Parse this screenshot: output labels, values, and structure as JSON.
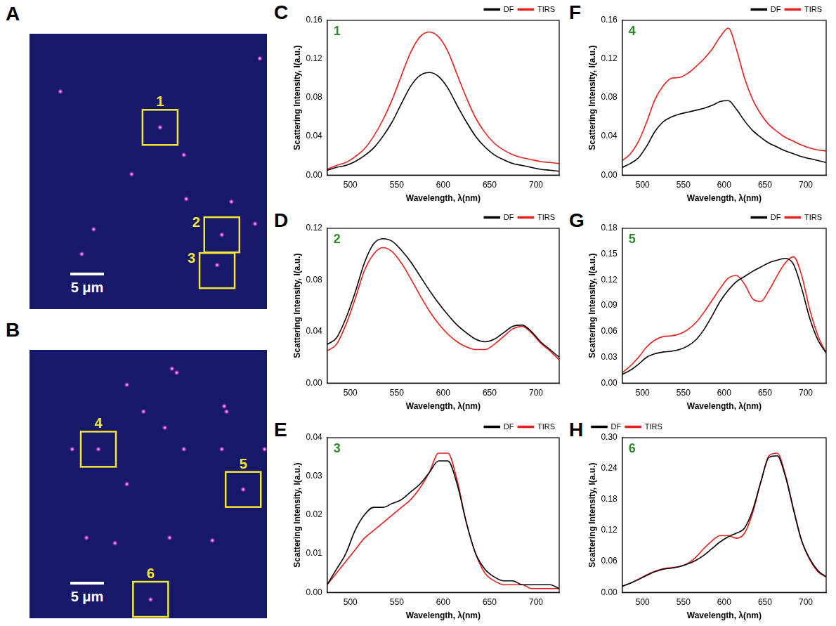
{
  "images": [
    {
      "panel": "A",
      "scale_bar": "5 μm",
      "spots": [
        {
          "x": 0.97,
          "y": 0.09
        },
        {
          "x": 0.13,
          "y": 0.21
        },
        {
          "x": 0.55,
          "y": 0.34
        },
        {
          "x": 0.65,
          "y": 0.44
        },
        {
          "x": 0.43,
          "y": 0.51
        },
        {
          "x": 0.66,
          "y": 0.6
        },
        {
          "x": 0.85,
          "y": 0.61
        },
        {
          "x": 0.81,
          "y": 0.73
        },
        {
          "x": 0.95,
          "y": 0.69
        },
        {
          "x": 0.27,
          "y": 0.71
        },
        {
          "x": 0.79,
          "y": 0.84
        },
        {
          "x": 0.22,
          "y": 0.8
        }
      ],
      "boxes": [
        {
          "label": "1",
          "x": 0.55,
          "y": 0.34,
          "label_side": "top"
        },
        {
          "label": "2",
          "x": 0.81,
          "y": 0.73,
          "label_side": "left"
        },
        {
          "label": "3",
          "x": 0.79,
          "y": 0.86,
          "label_side": "left"
        }
      ]
    },
    {
      "panel": "B",
      "scale_bar": "5 μm",
      "spots": [
        {
          "x": 0.29,
          "y": 0.37
        },
        {
          "x": 0.9,
          "y": 0.52
        },
        {
          "x": 0.51,
          "y": 0.93
        },
        {
          "x": 0.6,
          "y": 0.07
        },
        {
          "x": 0.62,
          "y": 0.085
        },
        {
          "x": 0.41,
          "y": 0.13
        },
        {
          "x": 0.82,
          "y": 0.21
        },
        {
          "x": 0.83,
          "y": 0.23
        },
        {
          "x": 0.48,
          "y": 0.23
        },
        {
          "x": 0.18,
          "y": 0.37
        },
        {
          "x": 0.41,
          "y": 0.5
        },
        {
          "x": 0.65,
          "y": 0.37
        },
        {
          "x": 0.81,
          "y": 0.37
        },
        {
          "x": 0.99,
          "y": 0.37
        },
        {
          "x": 0.24,
          "y": 0.7
        },
        {
          "x": 0.36,
          "y": 0.72
        },
        {
          "x": 0.59,
          "y": 0.7
        },
        {
          "x": 0.77,
          "y": 0.71
        },
        {
          "x": 0.57,
          "y": 0.29
        }
      ],
      "boxes": [
        {
          "label": "4",
          "x": 0.29,
          "y": 0.37,
          "label_side": "top"
        },
        {
          "label": "5",
          "x": 0.9,
          "y": 0.52,
          "label_side": "top"
        },
        {
          "label": "6",
          "x": 0.51,
          "y": 0.93,
          "label_side": "top"
        }
      ]
    }
  ],
  "chart_data": [
    {
      "panel": "C",
      "type": "line",
      "annotation": "1",
      "x_label": "Wavelength, λ(nm)",
      "y_label": "Scattering Intensity, I(a.u.)",
      "x": [
        475,
        485,
        495,
        505,
        515,
        525,
        535,
        545,
        555,
        565,
        575,
        585,
        595,
        605,
        615,
        625,
        635,
        645,
        655,
        665,
        675,
        685,
        695,
        705,
        715,
        725
      ],
      "series": [
        {
          "name": "DF",
          "color": "#000000",
          "values": [
            0.005,
            0.008,
            0.01,
            0.014,
            0.02,
            0.028,
            0.04,
            0.055,
            0.074,
            0.092,
            0.103,
            0.106,
            0.102,
            0.09,
            0.072,
            0.055,
            0.04,
            0.029,
            0.021,
            0.016,
            0.012,
            0.01,
            0.008,
            0.006,
            0.005,
            0.004
          ]
        },
        {
          "name": "TIRS",
          "color": "#e8201c",
          "values": [
            0.006,
            0.01,
            0.013,
            0.019,
            0.027,
            0.04,
            0.057,
            0.078,
            0.103,
            0.127,
            0.143,
            0.148,
            0.143,
            0.128,
            0.104,
            0.08,
            0.059,
            0.044,
            0.033,
            0.026,
            0.021,
            0.018,
            0.016,
            0.014,
            0.013,
            0.012
          ]
        }
      ],
      "xlim": [
        475,
        725
      ],
      "xticks": [
        500,
        550,
        600,
        650,
        700
      ],
      "ylim": [
        0,
        0.16
      ],
      "yticks": [
        {
          "value": 0,
          "label": "0.00"
        },
        {
          "value": 0.04,
          "label": "0.04"
        },
        {
          "value": 0.08,
          "label": "0.08"
        },
        {
          "value": 0.12,
          "label": "0.12"
        },
        {
          "value": 0.16,
          "label": "0.16"
        }
      ],
      "grid": false,
      "legend": "top-right"
    },
    {
      "panel": "D",
      "type": "line",
      "annotation": "2",
      "x_label": "Wavelength, λ(nm)",
      "y_label": "Scattering Intensity, I(a.u.)",
      "x": [
        475,
        485,
        495,
        505,
        515,
        525,
        535,
        545,
        555,
        565,
        575,
        585,
        595,
        605,
        615,
        625,
        635,
        645,
        655,
        665,
        675,
        685,
        695,
        705,
        715,
        725
      ],
      "series": [
        {
          "name": "DF",
          "color": "#000000",
          "values": [
            0.03,
            0.035,
            0.05,
            0.07,
            0.093,
            0.108,
            0.112,
            0.11,
            0.103,
            0.094,
            0.083,
            0.072,
            0.062,
            0.053,
            0.045,
            0.039,
            0.034,
            0.032,
            0.034,
            0.039,
            0.044,
            0.045,
            0.04,
            0.032,
            0.026,
            0.02
          ]
        },
        {
          "name": "TIRS",
          "color": "#e8201c",
          "values": [
            0.025,
            0.03,
            0.045,
            0.065,
            0.087,
            0.1,
            0.105,
            0.102,
            0.093,
            0.081,
            0.068,
            0.056,
            0.046,
            0.038,
            0.032,
            0.028,
            0.026,
            0.026,
            0.03,
            0.036,
            0.042,
            0.044,
            0.039,
            0.031,
            0.025,
            0.018
          ]
        }
      ],
      "xlim": [
        475,
        725
      ],
      "xticks": [
        500,
        550,
        600,
        650,
        700
      ],
      "ylim": [
        0,
        0.12
      ],
      "yticks": [
        {
          "value": 0,
          "label": "0.00"
        },
        {
          "value": 0.04,
          "label": "0.04"
        },
        {
          "value": 0.08,
          "label": "0.08"
        },
        {
          "value": 0.12,
          "label": "0.12"
        }
      ],
      "grid": false,
      "legend": "top-right"
    },
    {
      "panel": "E",
      "type": "line",
      "annotation": "3",
      "x_label": "Wavelength, λ(nm)",
      "y_label": "Scattering Intensity, I(a.u.)",
      "x": [
        475,
        485,
        495,
        505,
        515,
        525,
        535,
        545,
        555,
        565,
        575,
        585,
        595,
        605,
        615,
        625,
        635,
        645,
        655,
        665,
        675,
        685,
        695,
        705,
        715,
        725
      ],
      "series": [
        {
          "name": "DF",
          "color": "#000000",
          "values": [
            0.002,
            0.006,
            0.01,
            0.016,
            0.02,
            0.022,
            0.022,
            0.023,
            0.024,
            0.026,
            0.028,
            0.031,
            0.034,
            0.034,
            0.028,
            0.018,
            0.01,
            0.006,
            0.004,
            0.003,
            0.003,
            0.002,
            0.002,
            0.002,
            0.002,
            0.001
          ]
        },
        {
          "name": "TIRS",
          "color": "#e8201c",
          "values": [
            0.002,
            0.005,
            0.008,
            0.011,
            0.014,
            0.016,
            0.018,
            0.02,
            0.022,
            0.024,
            0.027,
            0.031,
            0.036,
            0.036,
            0.029,
            0.018,
            0.01,
            0.005,
            0.003,
            0.002,
            0.002,
            0.002,
            0.001,
            0.001,
            0.001,
            0.001
          ]
        }
      ],
      "xlim": [
        475,
        725
      ],
      "xticks": [
        500,
        550,
        600,
        650,
        700
      ],
      "ylim": [
        0,
        0.04
      ],
      "yticks": [
        {
          "value": 0,
          "label": "0.00"
        },
        {
          "value": 0.01,
          "label": "0.01"
        },
        {
          "value": 0.02,
          "label": "0.02"
        },
        {
          "value": 0.03,
          "label": "0.03"
        },
        {
          "value": 0.04,
          "label": "0.04"
        }
      ],
      "grid": false,
      "legend": "top-right"
    },
    {
      "panel": "F",
      "type": "line",
      "annotation": "4",
      "x_label": "Wavelength, λ(nm)",
      "y_label": "Scattering Intensity, I(a.u.)",
      "x": [
        475,
        485,
        495,
        505,
        515,
        525,
        535,
        545,
        555,
        565,
        575,
        585,
        595,
        605,
        615,
        625,
        635,
        645,
        655,
        665,
        675,
        685,
        695,
        705,
        715,
        725
      ],
      "series": [
        {
          "name": "DF",
          "color": "#000000",
          "values": [
            0.008,
            0.012,
            0.018,
            0.03,
            0.045,
            0.055,
            0.06,
            0.063,
            0.065,
            0.067,
            0.069,
            0.072,
            0.076,
            0.077,
            0.068,
            0.056,
            0.046,
            0.039,
            0.033,
            0.029,
            0.025,
            0.022,
            0.019,
            0.017,
            0.015,
            0.013
          ]
        },
        {
          "name": "TIRS",
          "color": "#e8201c",
          "values": [
            0.015,
            0.022,
            0.035,
            0.055,
            0.078,
            0.092,
            0.1,
            0.101,
            0.105,
            0.112,
            0.12,
            0.13,
            0.143,
            0.152,
            0.13,
            0.1,
            0.078,
            0.063,
            0.052,
            0.045,
            0.039,
            0.035,
            0.031,
            0.028,
            0.026,
            0.025
          ]
        }
      ],
      "xlim": [
        475,
        725
      ],
      "xticks": [
        500,
        550,
        600,
        650,
        700
      ],
      "ylim": [
        0,
        0.16
      ],
      "yticks": [
        {
          "value": 0,
          "label": "0.00"
        },
        {
          "value": 0.04,
          "label": "0.04"
        },
        {
          "value": 0.08,
          "label": "0.08"
        },
        {
          "value": 0.12,
          "label": "0.12"
        },
        {
          "value": 0.16,
          "label": "0.16"
        }
      ],
      "grid": false,
      "legend": "top-right"
    },
    {
      "panel": "G",
      "type": "line",
      "annotation": "5",
      "x_label": "Wavelength, λ(nm)",
      "y_label": "Scattering Intensity, I(a.u.)",
      "x": [
        475,
        485,
        495,
        505,
        515,
        525,
        535,
        545,
        555,
        565,
        575,
        585,
        595,
        605,
        615,
        625,
        635,
        645,
        655,
        665,
        675,
        685,
        695,
        705,
        715,
        725
      ],
      "series": [
        {
          "name": "DF",
          "color": "#000000",
          "values": [
            0.01,
            0.015,
            0.022,
            0.03,
            0.034,
            0.036,
            0.037,
            0.039,
            0.043,
            0.05,
            0.062,
            0.078,
            0.095,
            0.108,
            0.118,
            0.124,
            0.13,
            0.135,
            0.14,
            0.143,
            0.145,
            0.138,
            0.11,
            0.075,
            0.05,
            0.035
          ]
        },
        {
          "name": "TIRS",
          "color": "#e8201c",
          "values": [
            0.012,
            0.02,
            0.03,
            0.042,
            0.05,
            0.054,
            0.055,
            0.057,
            0.062,
            0.07,
            0.082,
            0.096,
            0.11,
            0.122,
            0.125,
            0.115,
            0.098,
            0.095,
            0.108,
            0.125,
            0.14,
            0.147,
            0.125,
            0.085,
            0.055,
            0.035
          ]
        }
      ],
      "xlim": [
        475,
        725
      ],
      "xticks": [
        500,
        550,
        600,
        650,
        700
      ],
      "ylim": [
        0,
        0.18
      ],
      "yticks": [
        {
          "value": 0,
          "label": "0.00"
        },
        {
          "value": 0.03,
          "label": "0.03"
        },
        {
          "value": 0.06,
          "label": "0.06"
        },
        {
          "value": 0.09,
          "label": "0.09"
        },
        {
          "value": 0.12,
          "label": "0.12"
        },
        {
          "value": 0.15,
          "label": "0.15"
        },
        {
          "value": 0.18,
          "label": "0.18"
        }
      ],
      "grid": false,
      "legend": "top-right"
    },
    {
      "panel": "H",
      "type": "line",
      "annotation": "6",
      "x_label": "Wavelength, λ(nm)",
      "y_label": "Scattering Intensity, I(a.u.)",
      "x": [
        475,
        485,
        495,
        505,
        515,
        525,
        535,
        545,
        555,
        565,
        575,
        585,
        595,
        605,
        615,
        625,
        635,
        645,
        655,
        665,
        675,
        685,
        695,
        705,
        715,
        725
      ],
      "series": [
        {
          "name": "DF",
          "color": "#000000",
          "values": [
            0.012,
            0.018,
            0.025,
            0.033,
            0.04,
            0.045,
            0.047,
            0.05,
            0.055,
            0.062,
            0.072,
            0.085,
            0.098,
            0.108,
            0.115,
            0.125,
            0.16,
            0.215,
            0.262,
            0.265,
            0.225,
            0.16,
            0.1,
            0.065,
            0.042,
            0.03
          ]
        },
        {
          "name": "TIRS",
          "color": "#e8201c",
          "values": [
            0.012,
            0.018,
            0.026,
            0.034,
            0.041,
            0.046,
            0.048,
            0.05,
            0.056,
            0.068,
            0.085,
            0.1,
            0.11,
            0.11,
            0.105,
            0.115,
            0.155,
            0.215,
            0.265,
            0.27,
            0.228,
            0.162,
            0.1,
            0.063,
            0.04,
            0.03
          ]
        }
      ],
      "xlim": [
        475,
        725
      ],
      "xticks": [
        500,
        550,
        600,
        650,
        700
      ],
      "ylim": [
        0,
        0.3
      ],
      "yticks": [
        {
          "value": 0,
          "label": "0.00"
        },
        {
          "value": 0.06,
          "label": "0.06"
        },
        {
          "value": 0.12,
          "label": "0.12"
        },
        {
          "value": 0.18,
          "label": "0.18"
        },
        {
          "value": 0.24,
          "label": "0.24"
        },
        {
          "value": 0.3,
          "label": "0.30"
        }
      ],
      "grid": false,
      "legend": "top-left"
    }
  ]
}
